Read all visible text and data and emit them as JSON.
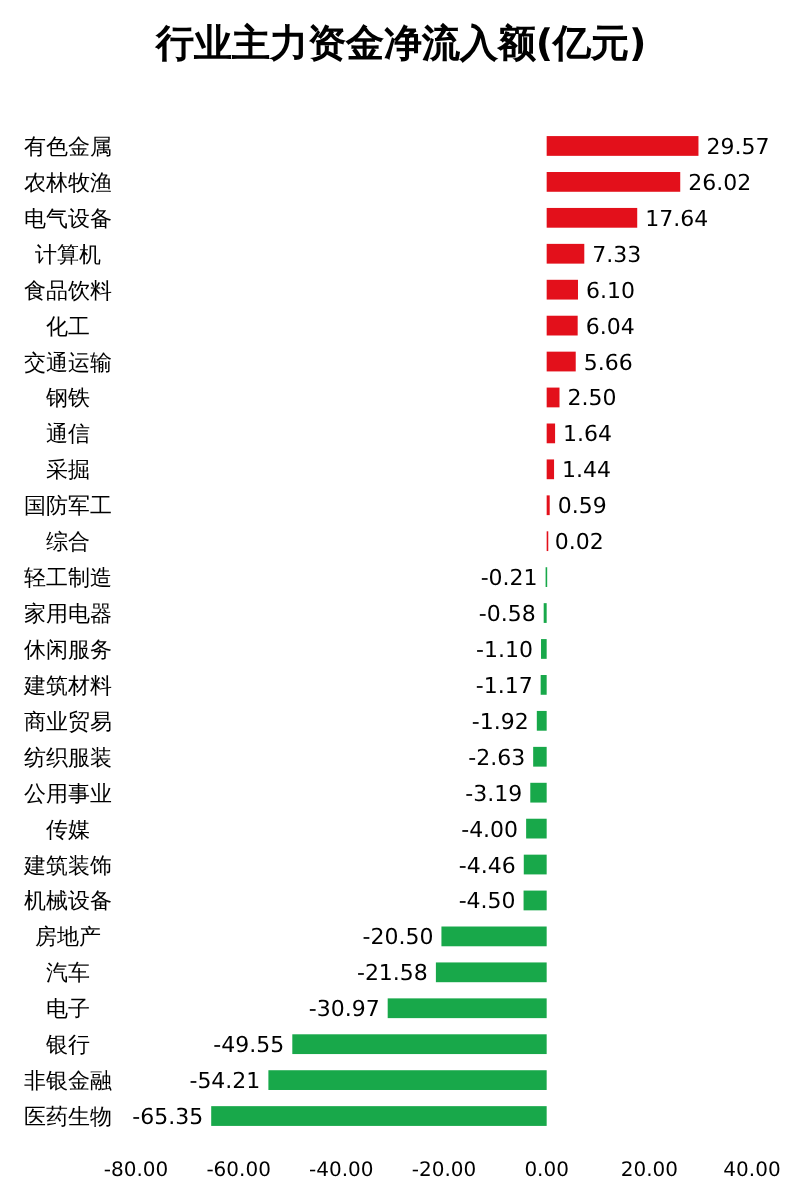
{
  "chart_data": {
    "type": "bar",
    "orientation": "horizontal",
    "title": "行业主力资金净流入额(亿元)",
    "categories": [
      "有色金属",
      "农林牧渔",
      "电气设备",
      "计算机",
      "食品饮料",
      "化工",
      "交通运输",
      "钢铁",
      "通信",
      "采掘",
      "国防军工",
      "综合",
      "轻工制造",
      "家用电器",
      "休闲服务",
      "建筑材料",
      "商业贸易",
      "纺织服装",
      "公用事业",
      "传媒",
      "建筑装饰",
      "机械设备",
      "房地产",
      "汽车",
      "电子",
      "银行",
      "非银金融",
      "医药生物"
    ],
    "values": [
      29.57,
      26.02,
      17.64,
      7.33,
      6.1,
      6.04,
      5.66,
      2.5,
      1.64,
      1.44,
      0.59,
      0.02,
      -0.21,
      -0.58,
      -1.1,
      -1.17,
      -1.92,
      -2.63,
      -3.19,
      -4.0,
      -4.46,
      -4.5,
      -20.5,
      -21.58,
      -30.97,
      -49.55,
      -54.21,
      -65.35
    ],
    "value_labels": [
      "29.57",
      "26.02",
      "17.64",
      "7.33",
      "6.10",
      "6.04",
      "5.66",
      "2.50",
      "1.64",
      "1.44",
      "0.59",
      "0.02",
      "-0.21",
      "-0.58",
      "-1.10",
      "-1.17",
      "-1.92",
      "-2.63",
      "-3.19",
      "-4.00",
      "-4.46",
      "-4.50",
      "-20.50",
      "-21.58",
      "-30.97",
      "-49.55",
      "-54.21",
      "-65.35"
    ],
    "colors": [
      "#e3101b",
      "#e3101b",
      "#e3101b",
      "#e3101b",
      "#e3101b",
      "#e3101b",
      "#e3101b",
      "#e3101b",
      "#e3101b",
      "#e3101b",
      "#e3101b",
      "#e3101b",
      "#18a84a",
      "#18a84a",
      "#18a84a",
      "#18a84a",
      "#18a84a",
      "#18a84a",
      "#18a84a",
      "#18a84a",
      "#18a84a",
      "#18a84a",
      "#18a84a",
      "#18a84a",
      "#18a84a",
      "#18a84a",
      "#18a84a",
      "#18a84a"
    ],
    "xlim": [
      -80,
      40
    ],
    "xticks": [
      {
        "value": -80,
        "label": "-80.00"
      },
      {
        "value": -60,
        "label": "-60.00"
      },
      {
        "value": -40,
        "label": "-40.00"
      },
      {
        "value": -20,
        "label": "-20.00"
      },
      {
        "value": 0,
        "label": "0.00"
      },
      {
        "value": 20,
        "label": "20.00"
      },
      {
        "value": 40,
        "label": "40.00"
      }
    ],
    "grid": false
  }
}
